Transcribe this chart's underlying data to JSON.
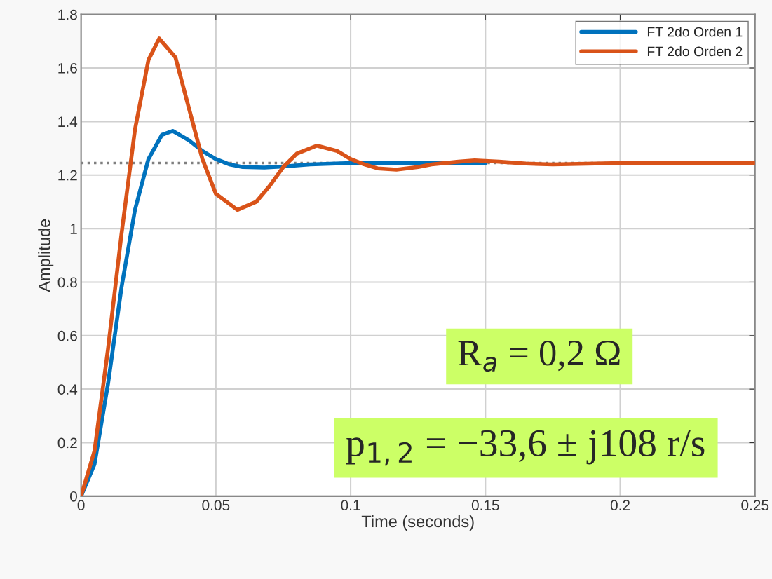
{
  "chart_data": {
    "type": "line",
    "xlabel": "Time (seconds)",
    "ylabel": "Amplitude",
    "xlim": [
      0,
      0.25
    ],
    "xticks": [
      0,
      0.05,
      0.1,
      0.15,
      0.2,
      0.25
    ],
    "ylim": [
      0,
      1.8
    ],
    "yticks": [
      0,
      0.2,
      0.4,
      0.6,
      0.8,
      1,
      1.2,
      1.4,
      1.6,
      1.8
    ],
    "grid": true,
    "legend": "top right",
    "line_style": "solid",
    "marker": "none",
    "series": [
      {
        "name": "FT 2do Orden 1",
        "color": "#0072bd",
        "x": [
          0,
          0.005,
          0.01,
          0.015,
          0.02,
          0.025,
          0.03,
          0.034,
          0.04,
          0.045,
          0.05,
          0.055,
          0.06,
          0.068,
          0.075,
          0.085,
          0.1,
          0.12,
          0.15
        ],
        "values": [
          0,
          0.12,
          0.42,
          0.78,
          1.07,
          1.26,
          1.35,
          1.365,
          1.33,
          1.29,
          1.26,
          1.24,
          1.23,
          1.228,
          1.232,
          1.24,
          1.245,
          1.245,
          1.245
        ]
      },
      {
        "name": "FT 2do Orden 2",
        "color": "#d95319",
        "x": [
          0,
          0.005,
          0.01,
          0.015,
          0.02,
          0.025,
          0.029,
          0.035,
          0.04,
          0.045,
          0.05,
          0.058,
          0.065,
          0.07,
          0.075,
          0.08,
          0.0875,
          0.095,
          0.1,
          0.105,
          0.11,
          0.117,
          0.125,
          0.13,
          0.14,
          0.146,
          0.155,
          0.165,
          0.175,
          0.2,
          0.25
        ],
        "values": [
          0,
          0.17,
          0.55,
          0.98,
          1.37,
          1.63,
          1.71,
          1.64,
          1.45,
          1.26,
          1.13,
          1.07,
          1.1,
          1.16,
          1.23,
          1.28,
          1.31,
          1.29,
          1.26,
          1.24,
          1.225,
          1.22,
          1.23,
          1.24,
          1.25,
          1.255,
          1.25,
          1.243,
          1.24,
          1.245,
          1.245
        ]
      }
    ],
    "ref_lines": [
      {
        "axis": "y",
        "value": 1.245,
        "color": "#7f7f7f",
        "line_style": "dotted"
      }
    ],
    "annotations": [
      "R$_{a}$ = 0,2 Ω",
      "p$_{1,2}$ = −33,6 ± j108 r/s"
    ]
  }
}
